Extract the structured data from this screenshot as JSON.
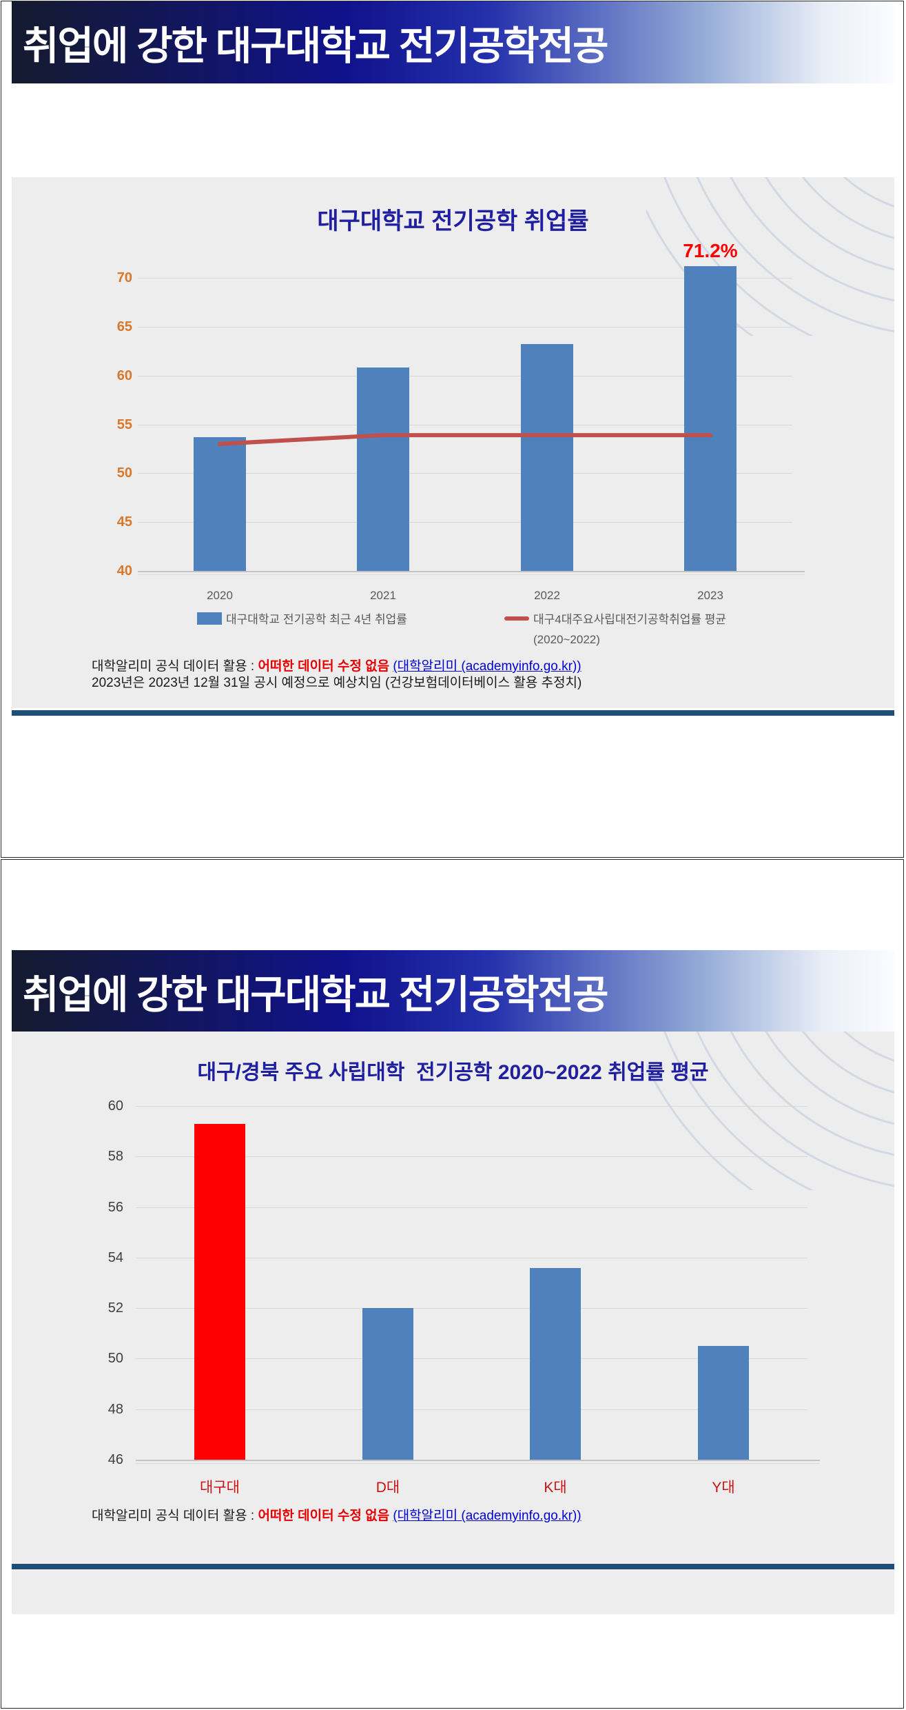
{
  "colors": {
    "banner_navy": "#141a2e",
    "banner_blue": "#10128c",
    "bar_blue": "#4f81bd",
    "bar_red": "#ff0000",
    "trend_line_red": "#c0504d",
    "title_blue": "#1f1fa0",
    "axis_orange": "#d9772a",
    "axis_gray": "#3f3f3f",
    "xtick_red": "#cc1111",
    "divider_navy": "#1f4e79",
    "link_blue": "#0000d0",
    "highlight_red": "#e60000"
  },
  "page1": {
    "header_title": "취업에 강한 대구대학교 전기공학전공",
    "footer": {
      "line1_prefix": "대학알리미 공식 데이터 활용 : ",
      "line1_highlight": "어떠한 데이터 수정 없음",
      "line1_link": "(대학알리미 (academyinfo.go.kr))",
      "line2": "2023년은 2023년 12월 31일 공시 예정으로 예상치임 (건강보험데이터베이스 활용 추정치)"
    }
  },
  "page2": {
    "header_title": "취업에 강한 대구대학교 전기공학전공",
    "footer": {
      "line1_prefix": "대학알리미 공식 데이터 활용 : ",
      "line1_highlight": "어떠한 데이터 수정 없음",
      "line1_link": "(대학알리미 (academyinfo.go.kr))"
    }
  },
  "chart_data": [
    {
      "type": "bar",
      "title": "대구대학교 전기공학 취업률",
      "categories": [
        "2020",
        "2021",
        "2022",
        "2023"
      ],
      "series": [
        {
          "name": "대구대학교 전기공학 최근 4년 취업률",
          "kind": "bar",
          "color": "#4f81bd",
          "values": [
            53.7,
            60.8,
            63.2,
            71.2
          ]
        },
        {
          "name": "대구4대주요사립대전기공학취업률 평균",
          "period": "(2020~2022)",
          "kind": "line",
          "color": "#c0504d",
          "values": [
            53.0,
            53.9,
            53.9,
            53.9
          ]
        }
      ],
      "ylim": [
        40,
        70
      ],
      "ytick_step": 5,
      "ytick_color": "#d9772a",
      "xtick_color": "#595959",
      "grid": true,
      "legend_position": "bottom",
      "annotation": {
        "text": "71.2%",
        "category_index": 3,
        "color": "#ff0000"
      }
    },
    {
      "type": "bar",
      "title": "대구/경북 주요 사립대학  전기공학 2020~2022 취업률 평균",
      "categories": [
        "대구대",
        "D대",
        "K대",
        "Y대"
      ],
      "values": [
        59.3,
        52.0,
        53.6,
        50.5
      ],
      "bar_colors": [
        "#ff0000",
        "#4f81bd",
        "#4f81bd",
        "#4f81bd"
      ],
      "ylim": [
        46,
        60
      ],
      "ytick_step": 2,
      "ytick_color": "#3f3f3f",
      "xtick_color": "#cc1111",
      "grid": true,
      "legend_position": "none"
    }
  ]
}
